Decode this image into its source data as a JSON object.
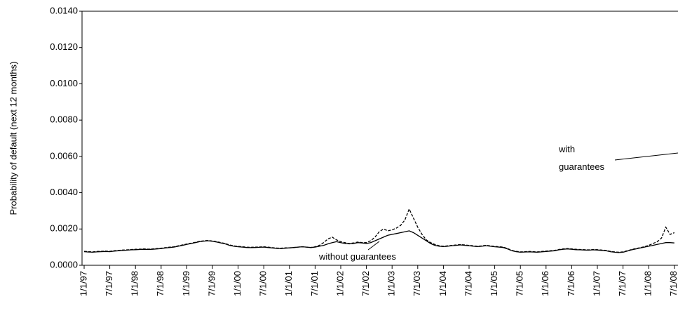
{
  "chart_data": {
    "type": "line",
    "y_label": "Probability of default (next 12 months)",
    "categories": [
      "1/1/97",
      null,
      null,
      null,
      null,
      null,
      "7/1/97",
      null,
      null,
      null,
      null,
      null,
      "1/1/98",
      null,
      null,
      null,
      null,
      null,
      "7/1/98",
      null,
      null,
      null,
      null,
      null,
      "1/1/99",
      null,
      null,
      null,
      null,
      null,
      "7/1/99",
      null,
      null,
      null,
      null,
      null,
      "1/1/00",
      null,
      null,
      null,
      null,
      null,
      "7/1/00",
      null,
      null,
      null,
      null,
      null,
      "1/1/01",
      null,
      null,
      null,
      null,
      null,
      "7/1/01",
      null,
      null,
      null,
      null,
      null,
      "1/1/02",
      null,
      null,
      null,
      null,
      null,
      "7/1/02",
      null,
      null,
      null,
      null,
      null,
      "1/1/03",
      null,
      null,
      null,
      null,
      null,
      "7/1/03",
      null,
      null,
      null,
      null,
      null,
      "1/1/04",
      null,
      null,
      null,
      null,
      null,
      "7/1/04",
      null,
      null,
      null,
      null,
      null,
      "1/1/05",
      null,
      null,
      null,
      null,
      null,
      "7/1/05",
      null,
      null,
      null,
      null,
      null,
      "1/1/06",
      null,
      null,
      null,
      null,
      null,
      "7/1/06",
      null,
      null,
      null,
      null,
      null,
      "1/1/07",
      null,
      null,
      null,
      null,
      null,
      "7/1/07",
      null,
      null,
      null,
      null,
      null,
      "1/1/08",
      null,
      null,
      null,
      null,
      null,
      "7/1/08"
    ],
    "series": [
      {
        "name": "without guarantees",
        "color": "#000000",
        "dash": false,
        "values": [
          0.00075,
          0.00073,
          0.00072,
          0.00074,
          0.00075,
          0.00076,
          0.00075,
          0.00078,
          0.0008,
          0.00082,
          0.00083,
          0.00085,
          0.00086,
          0.00087,
          0.00088,
          0.00087,
          0.00088,
          0.0009,
          0.00092,
          0.00095,
          0.00098,
          0.001,
          0.00105,
          0.0011,
          0.00115,
          0.0012,
          0.00125,
          0.0013,
          0.00133,
          0.00135,
          0.00132,
          0.00128,
          0.00123,
          0.00118,
          0.0011,
          0.00105,
          0.00102,
          0.001,
          0.00098,
          0.00097,
          0.00098,
          0.00099,
          0.001,
          0.00098,
          0.00095,
          0.00093,
          0.00092,
          0.00094,
          0.00096,
          0.00098,
          0.001,
          0.00102,
          0.001,
          0.00098,
          0.001,
          0.00105,
          0.0011,
          0.00118,
          0.00125,
          0.0013,
          0.00125,
          0.0012,
          0.00118,
          0.0012,
          0.00125,
          0.00123,
          0.0012,
          0.00125,
          0.00135,
          0.00145,
          0.00155,
          0.00165,
          0.0017,
          0.00175,
          0.0018,
          0.00185,
          0.0019,
          0.0018,
          0.00165,
          0.0015,
          0.00135,
          0.0012,
          0.0011,
          0.00105,
          0.00103,
          0.00105,
          0.00108,
          0.0011,
          0.00112,
          0.0011,
          0.00108,
          0.00105,
          0.00103,
          0.00105,
          0.00108,
          0.00105,
          0.00102,
          0.001,
          0.00098,
          0.0009,
          0.0008,
          0.00075,
          0.00072,
          0.00073,
          0.00074,
          0.00073,
          0.00072,
          0.00074,
          0.00076,
          0.00078,
          0.0008,
          0.00085,
          0.00088,
          0.0009,
          0.00088,
          0.00086,
          0.00085,
          0.00084,
          0.00083,
          0.00085,
          0.00084,
          0.00082,
          0.0008,
          0.00075,
          0.00072,
          0.0007,
          0.00072,
          0.00078,
          0.00085,
          0.0009,
          0.00095,
          0.001,
          0.00105,
          0.0011,
          0.00115,
          0.0012,
          0.00125,
          0.00125,
          0.00123
        ]
      },
      {
        "name": "with guarantees",
        "color": "#000000",
        "dash": true,
        "values": [
          0.00077,
          0.00075,
          0.00074,
          0.00076,
          0.00077,
          0.00078,
          0.00077,
          0.0008,
          0.00082,
          0.00084,
          0.00085,
          0.00087,
          0.00088,
          0.00089,
          0.0009,
          0.00089,
          0.0009,
          0.00092,
          0.00094,
          0.00097,
          0.001,
          0.00102,
          0.00107,
          0.00112,
          0.00117,
          0.00122,
          0.00127,
          0.00132,
          0.00135,
          0.00137,
          0.00134,
          0.0013,
          0.00125,
          0.0012,
          0.00112,
          0.00107,
          0.00104,
          0.00102,
          0.001,
          0.00099,
          0.001,
          0.00101,
          0.00102,
          0.001,
          0.00097,
          0.00095,
          0.00094,
          0.00096,
          0.00096,
          0.00098,
          0.001,
          0.00102,
          0.001,
          0.00098,
          0.00102,
          0.0011,
          0.00125,
          0.00145,
          0.00155,
          0.0014,
          0.0013,
          0.00125,
          0.0012,
          0.00123,
          0.00128,
          0.00125,
          0.00125,
          0.00135,
          0.00155,
          0.00185,
          0.002,
          0.0019,
          0.00195,
          0.00205,
          0.0022,
          0.0025,
          0.0031,
          0.0026,
          0.0021,
          0.0017,
          0.0014,
          0.00125,
          0.00115,
          0.00108,
          0.00105,
          0.00107,
          0.0011,
          0.00112,
          0.00114,
          0.00112,
          0.0011,
          0.00107,
          0.00105,
          0.00107,
          0.0011,
          0.00107,
          0.00104,
          0.00102,
          0.001,
          0.00092,
          0.00082,
          0.00077,
          0.00074,
          0.00075,
          0.00076,
          0.00075,
          0.00074,
          0.00076,
          0.00078,
          0.0008,
          0.00082,
          0.00087,
          0.0009,
          0.00092,
          0.0009,
          0.00088,
          0.00087,
          0.00086,
          0.00085,
          0.00087,
          0.00086,
          0.00084,
          0.00082,
          0.00077,
          0.00074,
          0.00072,
          0.00074,
          0.0008,
          0.00087,
          0.00092,
          0.00097,
          0.00102,
          0.0011,
          0.0012,
          0.0013,
          0.0015,
          0.0021,
          0.0017,
          0.0018
        ]
      }
    ],
    "ylim": [
      0,
      0.014
    ],
    "yticks": [
      {
        "value": 0,
        "label": "0.0000"
      },
      {
        "value": 0.002,
        "label": "0.0020"
      },
      {
        "value": 0.004,
        "label": "0.0040"
      },
      {
        "value": 0.006,
        "label": "0.0060"
      },
      {
        "value": 0.008,
        "label": "0.0080"
      },
      {
        "value": 0.01,
        "label": "0.0100"
      },
      {
        "value": 0.012,
        "label": "0.0120"
      },
      {
        "value": 0.014,
        "label": "0.0140"
      }
    ],
    "grid": false
  }
}
